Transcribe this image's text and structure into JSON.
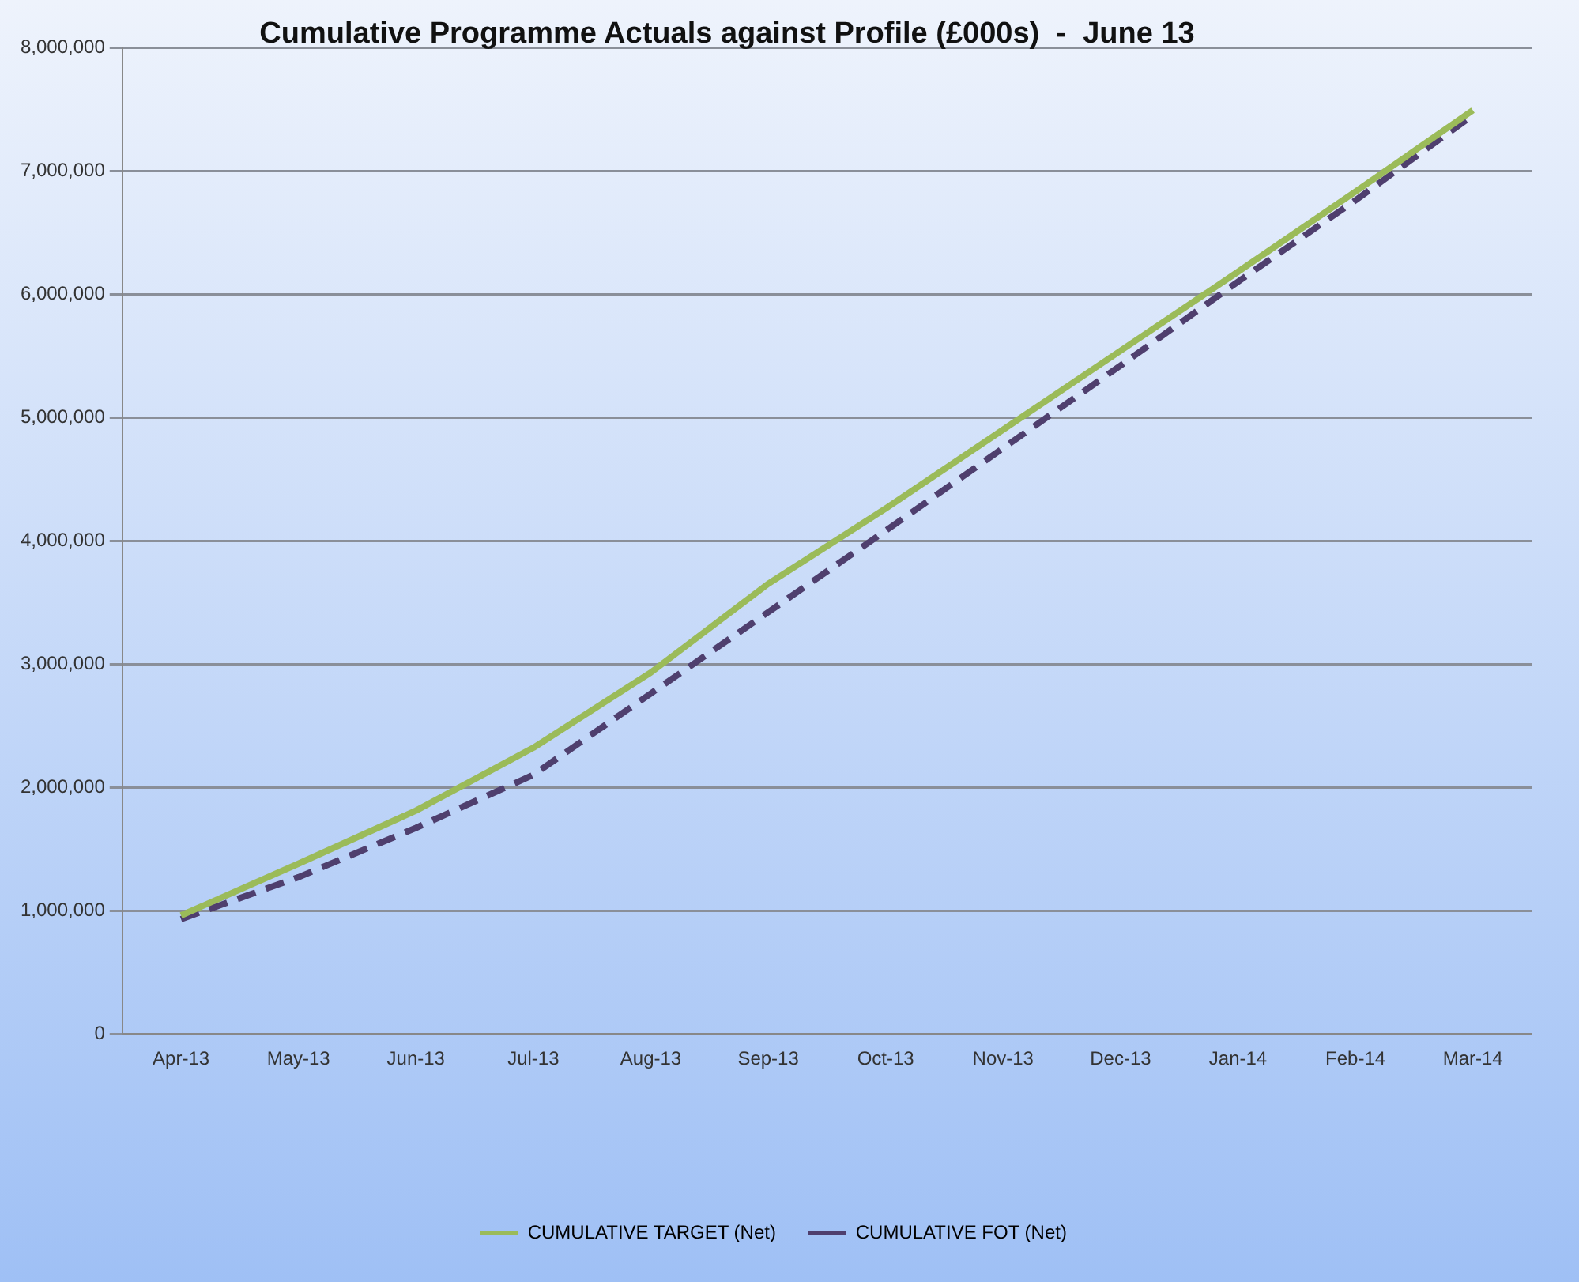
{
  "chart_data": {
    "type": "line",
    "title": "Cumulative Programme Actuals against Profile (£000s)  -  June 13",
    "categories": [
      "Apr-13",
      "May-13",
      "Jun-13",
      "Jul-13",
      "Aug-13",
      "Sep-13",
      "Oct-13",
      "Nov-13",
      "Dec-13",
      "Jan-14",
      "Feb-14",
      "Mar-14"
    ],
    "series": [
      {
        "name": "CUMULATIVE TARGET (Net)",
        "color": "#9bbb59",
        "line_style": "solid",
        "values": [
          960000,
          1380000,
          1810000,
          2320000,
          2930000,
          3650000,
          4260000,
          4900000,
          5540000,
          6180000,
          6830000,
          7490000
        ]
      },
      {
        "name": "CUMULATIVE FOT (Net)",
        "color": "#4f3f6e",
        "line_style": "dashed",
        "values": [
          930000,
          1270000,
          1670000,
          2100000,
          2760000,
          3420000,
          4080000,
          4750000,
          5420000,
          6100000,
          6760000,
          7450000
        ]
      }
    ],
    "ylim": [
      0,
      8000000
    ],
    "yticks": [
      0,
      {
        "value": 1000000,
        "label": "1,000,000"
      },
      {
        "value": 2000000,
        "label": "2,000,000"
      },
      {
        "value": 3000000,
        "label": "3,000,000"
      },
      {
        "value": 4000000,
        "label": "4,000,000"
      },
      {
        "value": 5000000,
        "label": "5,000,000"
      },
      {
        "value": 6000000,
        "label": "6,000,000"
      },
      {
        "value": 7000000,
        "label": "7,000,000"
      },
      {
        "value": 8000000,
        "label": "8,000,000"
      }
    ],
    "grid": "y",
    "legend": "bottom",
    "marker": "none"
  }
}
